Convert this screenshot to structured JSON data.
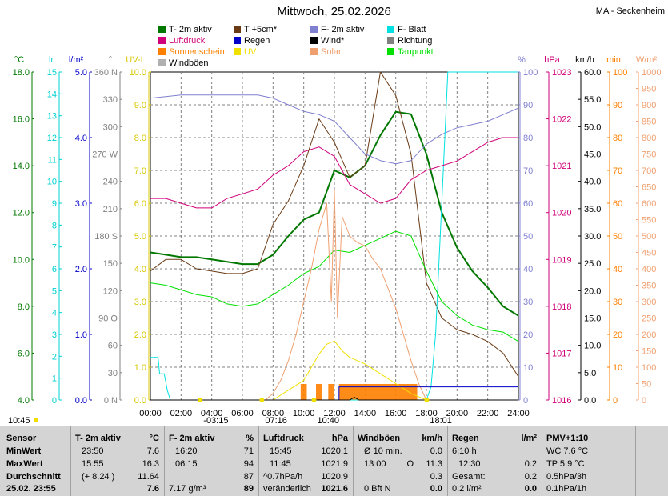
{
  "title": "Mittwoch, 25.02.2026",
  "station": "MA - Seckenheim",
  "colors": {
    "t2m": "#007800",
    "t5cm": "#6a3a14",
    "f2m": "#8080d0",
    "fblatt": "#00e0e0",
    "luftdruck": "#d0007a",
    "regen": "#0000c8",
    "wind": "#000000",
    "richtung": "#808080",
    "sonnenschein": "#ff8000",
    "uv": "#f0e000",
    "solar": "#f0a070",
    "taupunkt": "#00e000",
    "windboeen": "#b0b0b0"
  },
  "legend": [
    {
      "label": "T- 2m aktiv",
      "color": "#007800"
    },
    {
      "label": "T +5cm*",
      "color": "#6a3a14"
    },
    {
      "label": "F- 2m aktiv",
      "color": "#8080d0"
    },
    {
      "label": "F- Blatt",
      "color": "#00e0e0"
    },
    {
      "label": "Luftdruck",
      "color": "#d0007a"
    },
    {
      "label": "Regen",
      "color": "#0000c8"
    },
    {
      "label": "Wind*",
      "color": "#000000"
    },
    {
      "label": "Richtung",
      "color": "#808080"
    },
    {
      "label": "Sonnenschein",
      "color": "#ff8000"
    },
    {
      "label": "UV",
      "color": "#f0e000"
    },
    {
      "label": "Solar",
      "color": "#f0a070"
    },
    {
      "label": "Taupunkt",
      "color": "#00e000"
    },
    {
      "label": "Windböen",
      "color": "#b0b0b0"
    }
  ],
  "chart_data": {
    "type": "line",
    "x_ticks": [
      "00:00",
      "02:00",
      "04:00",
      "06:00",
      "08:00",
      "10:00",
      "12:00",
      "14:00",
      "16:00",
      "18:00",
      "20:00",
      "22:00",
      "24:00"
    ],
    "axes": {
      "temp": {
        "unit": "°C",
        "color": "#007800",
        "range": [
          4,
          18
        ],
        "ticks": [
          "18.0",
          "16.0",
          "14.0",
          "12.0",
          "10.0",
          "8.0",
          "6.0",
          "4.0"
        ]
      },
      "lr": {
        "unit": "lr",
        "color": "#00d0d0",
        "range": [
          0,
          15
        ],
        "ticks": [
          "15",
          "14",
          "13",
          "12",
          "11",
          "10",
          "9",
          "8",
          "7",
          "6",
          "5",
          "4",
          "3",
          "2",
          "1",
          "0"
        ]
      },
      "rain": {
        "unit": "l/m²",
        "color": "#0000c8",
        "range": [
          0,
          5
        ],
        "ticks": [
          "5.0",
          "4.0",
          "3.0",
          "2.0",
          "1.0",
          "0.0"
        ]
      },
      "dir": {
        "unit": "°",
        "color": "#808080",
        "range": [
          0,
          360
        ],
        "ticks": [
          "360 N",
          "330",
          "300",
          "270 W",
          "240",
          "210",
          "180 S",
          "150",
          "120",
          "90 O",
          "60",
          "30",
          "0 N"
        ]
      },
      "uv": {
        "unit": "UV-I",
        "color": "#d8c800",
        "range": [
          0,
          10
        ],
        "ticks": [
          "10.0",
          "9.0",
          "8.0",
          "7.0",
          "6.0",
          "5.0",
          "4.0",
          "3.0",
          "2.0",
          "1.0",
          "0.0"
        ]
      },
      "hum": {
        "unit": "%",
        "color": "#8080d0",
        "range": [
          0,
          100
        ],
        "ticks": [
          "100",
          "90",
          "80",
          "70",
          "60",
          "50",
          "40",
          "30",
          "20",
          "10",
          "0"
        ]
      },
      "press": {
        "unit": "hPa",
        "color": "#d0007a",
        "range": [
          1016,
          1023
        ],
        "ticks": [
          "1023",
          "1022",
          "1021",
          "1020",
          "1019",
          "1018",
          "1017",
          "1016"
        ]
      },
      "wind": {
        "unit": "km/h",
        "color": "#000000",
        "range": [
          0,
          60
        ],
        "ticks": [
          "60.0",
          "55.0",
          "50.0",
          "45.0",
          "40.0",
          "35.0",
          "30.0",
          "25.0",
          "20.0",
          "15.0",
          "10.0",
          "5.0",
          "0.0"
        ]
      },
      "min": {
        "unit": "min",
        "color": "#ff8000",
        "range": [
          0,
          100
        ],
        "ticks": [
          "100",
          "90",
          "80",
          "70",
          "60",
          "50",
          "40",
          "30",
          "20",
          "10",
          "0"
        ]
      },
      "solar": {
        "unit": "W/m²",
        "color": "#f0a070",
        "range": [
          0,
          1000
        ],
        "ticks": [
          "1000",
          "950",
          "900",
          "850",
          "800",
          "750",
          "700",
          "650",
          "600",
          "550",
          "500",
          "450",
          "400",
          "350",
          "300",
          "250",
          "200",
          "150",
          "100",
          "50",
          "0"
        ]
      }
    },
    "events": [
      {
        "time": "-03:15",
        "hour": 3.25
      },
      {
        "time": "07:16",
        "hour": 7.27
      },
      {
        "time": "10:40",
        "hour": 10.67
      },
      {
        "time": "18:01",
        "hour": 18.02
      }
    ],
    "corner_label": "10:45",
    "series": [
      {
        "name": "T- 2m aktiv",
        "axis": "temp",
        "color": "#007800",
        "width": 2,
        "points": [
          [
            0,
            10.3
          ],
          [
            1,
            10.2
          ],
          [
            2,
            10.1
          ],
          [
            3,
            10.1
          ],
          [
            4,
            10.0
          ],
          [
            5,
            9.9
          ],
          [
            6,
            9.8
          ],
          [
            7,
            9.8
          ],
          [
            8,
            10.2
          ],
          [
            9,
            11.0
          ],
          [
            10,
            11.7
          ],
          [
            11,
            12.0
          ],
          [
            12,
            13.8
          ],
          [
            13,
            13.5
          ],
          [
            14,
            14.0
          ],
          [
            15,
            15.3
          ],
          [
            16,
            16.3
          ],
          [
            17,
            16.2
          ],
          [
            18,
            14.5
          ],
          [
            19,
            12.0
          ],
          [
            20,
            10.5
          ],
          [
            21,
            9.5
          ],
          [
            22,
            8.8
          ],
          [
            23,
            8.0
          ],
          [
            24,
            7.6
          ]
        ]
      },
      {
        "name": "T +5cm*",
        "axis": "temp",
        "color": "#6a3a14",
        "width": 1,
        "points": [
          [
            0,
            9.5
          ],
          [
            1,
            10.0
          ],
          [
            2,
            10.0
          ],
          [
            3,
            9.6
          ],
          [
            4,
            9.5
          ],
          [
            5,
            9.4
          ],
          [
            6,
            9.4
          ],
          [
            7,
            9.6
          ],
          [
            8,
            11.5
          ],
          [
            9,
            12.5
          ],
          [
            10,
            14.0
          ],
          [
            11,
            16.0
          ],
          [
            12,
            15.0
          ],
          [
            13,
            13.5
          ],
          [
            14,
            14.0
          ],
          [
            15,
            18.0
          ],
          [
            16,
            17.0
          ],
          [
            17,
            14.5
          ],
          [
            18,
            9.0
          ],
          [
            19,
            7.5
          ],
          [
            20,
            7.0
          ],
          [
            21,
            6.8
          ],
          [
            22,
            6.5
          ],
          [
            23,
            6.0
          ],
          [
            24,
            5.0
          ]
        ]
      },
      {
        "name": "F- 2m aktiv",
        "axis": "hum",
        "color": "#8080d0",
        "width": 1,
        "points": [
          [
            0,
            92
          ],
          [
            2,
            93
          ],
          [
            4,
            93
          ],
          [
            6,
            93
          ],
          [
            7,
            93
          ],
          [
            8,
            92
          ],
          [
            9,
            90
          ],
          [
            10,
            88
          ],
          [
            11,
            87
          ],
          [
            12,
            85
          ],
          [
            13,
            80
          ],
          [
            14,
            75
          ],
          [
            15,
            73
          ],
          [
            16,
            72
          ],
          [
            17,
            73
          ],
          [
            18,
            78
          ],
          [
            19,
            81
          ],
          [
            20,
            83
          ],
          [
            21,
            84
          ],
          [
            22,
            85
          ],
          [
            23,
            87
          ],
          [
            24,
            89
          ]
        ]
      },
      {
        "name": "F- Blatt",
        "axis": "hum",
        "color": "#00e0e0",
        "width": 1,
        "points": [
          [
            0,
            13
          ],
          [
            0.5,
            13
          ],
          [
            0.6,
            8
          ],
          [
            0.9,
            8
          ],
          [
            1.1,
            3
          ],
          [
            1.3,
            0
          ],
          [
            18,
            0
          ],
          [
            18.3,
            4
          ],
          [
            18.6,
            20
          ],
          [
            19,
            60
          ],
          [
            19.4,
            100
          ],
          [
            24,
            100
          ]
        ]
      },
      {
        "name": "Luftdruck",
        "axis": "press",
        "color": "#d0007a",
        "width": 1,
        "points": [
          [
            0,
            1020.3
          ],
          [
            1,
            1020.3
          ],
          [
            2,
            1020.2
          ],
          [
            3,
            1020.1
          ],
          [
            4,
            1020.1
          ],
          [
            5,
            1020.3
          ],
          [
            6,
            1020.4
          ],
          [
            7,
            1020.5
          ],
          [
            8,
            1020.8
          ],
          [
            9,
            1021.0
          ],
          [
            10,
            1021.3
          ],
          [
            11,
            1021.4
          ],
          [
            12,
            1021.2
          ],
          [
            13,
            1020.6
          ],
          [
            14,
            1020.4
          ],
          [
            15,
            1020.2
          ],
          [
            16,
            1020.3
          ],
          [
            17,
            1020.7
          ],
          [
            18,
            1020.9
          ],
          [
            19,
            1021.0
          ],
          [
            20,
            1021.1
          ],
          [
            21,
            1021.3
          ],
          [
            22,
            1021.5
          ],
          [
            23,
            1021.6
          ],
          [
            24,
            1021.6
          ]
        ]
      },
      {
        "name": "Taupunkt",
        "axis": "temp",
        "color": "#00e000",
        "width": 1,
        "points": [
          [
            0,
            9.0
          ],
          [
            1,
            8.9
          ],
          [
            2,
            8.7
          ],
          [
            3,
            8.5
          ],
          [
            4,
            8.4
          ],
          [
            5,
            8.1
          ],
          [
            6,
            8.0
          ],
          [
            7,
            8.1
          ],
          [
            8,
            8.5
          ],
          [
            9,
            8.9
          ],
          [
            10,
            9.4
          ],
          [
            11,
            9.7
          ],
          [
            12,
            10.4
          ],
          [
            13,
            10.3
          ],
          [
            14,
            10.6
          ],
          [
            15,
            10.9
          ],
          [
            16,
            11.2
          ],
          [
            17,
            11.0
          ],
          [
            18,
            9.5
          ],
          [
            19,
            8.2
          ],
          [
            20,
            7.6
          ],
          [
            21,
            7.2
          ],
          [
            22,
            7.0
          ],
          [
            23,
            6.9
          ],
          [
            24,
            6.5
          ]
        ]
      },
      {
        "name": "Solar",
        "axis": "solar",
        "color": "#f0a070",
        "width": 1,
        "points": [
          [
            7.5,
            0
          ],
          [
            8,
            20
          ],
          [
            8.5,
            60
          ],
          [
            9,
            120
          ],
          [
            9.5,
            200
          ],
          [
            10,
            300
          ],
          [
            10.5,
            400
          ],
          [
            11,
            520
          ],
          [
            11.5,
            600
          ],
          [
            11.8,
            300
          ],
          [
            12,
            640
          ],
          [
            12.2,
            250
          ],
          [
            12.5,
            560
          ],
          [
            13,
            500
          ],
          [
            13.5,
            480
          ],
          [
            14,
            470
          ],
          [
            14.5,
            430
          ],
          [
            15,
            400
          ],
          [
            15.5,
            340
          ],
          [
            16,
            280
          ],
          [
            16.5,
            200
          ],
          [
            17,
            120
          ],
          [
            17.5,
            50
          ],
          [
            18,
            0
          ]
        ]
      },
      {
        "name": "UV",
        "axis": "uv",
        "color": "#f0e000",
        "width": 1,
        "points": [
          [
            8,
            0
          ],
          [
            9,
            0.3
          ],
          [
            10,
            0.6
          ],
          [
            10.5,
            1.0
          ],
          [
            11,
            1.4
          ],
          [
            11.5,
            1.7
          ],
          [
            12,
            1.8
          ],
          [
            12.5,
            1.5
          ],
          [
            13,
            1.3
          ],
          [
            13.5,
            1.2
          ],
          [
            14,
            1.1
          ],
          [
            15,
            0.8
          ],
          [
            16,
            0.5
          ],
          [
            17,
            0.2
          ],
          [
            18,
            0
          ]
        ]
      },
      {
        "name": "Regen",
        "axis": "rain",
        "color": "#0000c8",
        "width": 1,
        "points": [
          [
            0,
            0
          ],
          [
            12.3,
            0
          ],
          [
            12.3,
            0.2
          ],
          [
            24,
            0.2
          ]
        ]
      },
      {
        "name": "Wind*",
        "axis": "wind",
        "color": "#000000",
        "width": 1,
        "points": [
          [
            0,
            0
          ],
          [
            13,
            0
          ],
          [
            13.3,
            0.5
          ],
          [
            13.6,
            0
          ],
          [
            24,
            0
          ]
        ]
      }
    ],
    "sunshine_blocks": [
      [
        9.8,
        10.2
      ],
      [
        10.8,
        11.2
      ],
      [
        11.6,
        12.0
      ],
      [
        12.3,
        17.4
      ]
    ],
    "x_label": "",
    "y_label": ""
  },
  "table": {
    "col1": {
      "h": "Sensor",
      "r1": "MinWert",
      "r2": "MaxWert",
      "r3": "Durchschnitt",
      "r4": "25.02. 23:55"
    },
    "col2": {
      "h": "T- 2m aktiv",
      "u": "°C",
      "r1a": "23:50",
      "r1b": "7.6",
      "r2a": "15:55",
      "r2b": "16.3",
      "r3a": "(+ 8.24 )",
      "r3b": "11.64",
      "r4b": "7.6"
    },
    "col3": {
      "h": "F- 2m aktiv",
      "u": "%",
      "r1a": "16:20",
      "r1b": "71",
      "r2a": "06:15",
      "r2b": "94",
      "r3b": "87",
      "r4a": "7.17 g/m³",
      "r4b": "89"
    },
    "col4": {
      "h": "Luftdruck",
      "u": "hPa",
      "r1a": "15:45",
      "r1b": "1020.1",
      "r2a": "11:45",
      "r2b": "1021.9",
      "r3a": "^0.7hPa/h",
      "r3b": "1020.9",
      "r4a": "veränderlich",
      "r4b": "1021.6"
    },
    "col5": {
      "h": "Windböen",
      "u": "km/h",
      "r1a": "Ø 10 min.",
      "r1b": "0.0",
      "r2a": "13:00",
      "r2c": "O",
      "r2b": "11.3",
      "r3b": "0.3",
      "r4a": "0 Bft N",
      "r4b": "0.0"
    },
    "col6": {
      "h": "Regen",
      "u": "l/m²",
      "r1a": "6:10 h",
      "r2a": "12:30",
      "r2b": "0.2",
      "r3a": "Gesamt:",
      "r3b": "0.2",
      "r4a": "0.2 l/m²",
      "r4b": "0.0"
    },
    "col7": {
      "h": "PMV+1:10",
      "r1": "WC 7.6 °C",
      "r2": "TP 5.9 °C",
      "r3": "0.5hPa/3h",
      "r4": "0.1hPa/1h"
    }
  }
}
